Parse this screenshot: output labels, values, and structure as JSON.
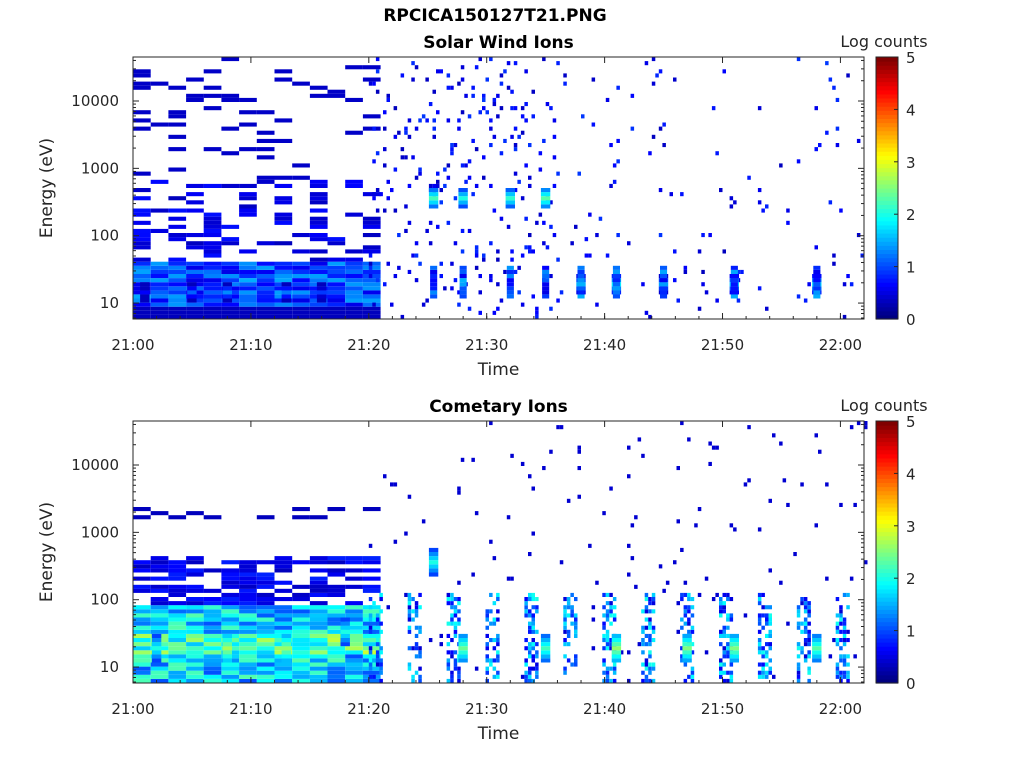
{
  "figure_title": "RPCICA150127T21.PNG",
  "chart_data": [
    {
      "type": "heatmap",
      "title": "Solar Wind Ions",
      "xlabel": "Time",
      "ylabel": "Energy (eV)",
      "x_ticks": [
        "21:00",
        "21:10",
        "21:20",
        "21:30",
        "21:40",
        "21:50",
        "22:00"
      ],
      "y_ticks": [
        "10",
        "100",
        "1000",
        "10000"
      ],
      "y_scale": "log",
      "xlim_minutes": [
        0,
        62
      ],
      "ylim_eV": [
        5.8,
        45000
      ],
      "colorbar": {
        "label": "Log counts",
        "ticks": [
          "0",
          "1",
          "2",
          "3",
          "4",
          "5"
        ],
        "range": [
          0,
          5
        ],
        "colormap": "jet"
      },
      "description_points": [
        {
          "t_min": 1,
          "e_eV": 15,
          "log_counts": 0.6
        },
        {
          "t_min": 5,
          "e_eV": 15,
          "log_counts": 1.1
        },
        {
          "t_min": 8,
          "e_eV": 15,
          "log_counts": 1.3
        },
        {
          "t_min": 13,
          "e_eV": 15,
          "log_counts": 1.2
        },
        {
          "t_min": 16,
          "e_eV": 15,
          "log_counts": 0.9
        },
        {
          "t_min": 25.5,
          "e_eV": 380,
          "log_counts": 2.2
        },
        {
          "t_min": 28,
          "e_eV": 380,
          "log_counts": 2.0
        },
        {
          "t_min": 32,
          "e_eV": 380,
          "log_counts": 2.1
        },
        {
          "t_min": 35,
          "e_eV": 380,
          "log_counts": 2.3
        },
        {
          "t_min": 38,
          "e_eV": 20,
          "log_counts": 1.5
        },
        {
          "t_min": 41,
          "e_eV": 20,
          "log_counts": 1.8
        },
        {
          "t_min": 45,
          "e_eV": 20,
          "log_counts": 1.4
        },
        {
          "t_min": 51,
          "e_eV": 20,
          "log_counts": 1.6
        },
        {
          "t_min": 58,
          "e_eV": 20,
          "log_counts": 1.7
        }
      ]
    },
    {
      "type": "heatmap",
      "title": "Cometary Ions",
      "xlabel": "Time",
      "ylabel": "Energy (eV)",
      "x_ticks": [
        "21:00",
        "21:10",
        "21:20",
        "21:30",
        "21:40",
        "21:50",
        "22:00"
      ],
      "y_ticks": [
        "10",
        "100",
        "1000",
        "10000"
      ],
      "y_scale": "log",
      "xlim_minutes": [
        0,
        62
      ],
      "ylim_eV": [
        5.8,
        45000
      ],
      "colorbar": {
        "label": "Log counts",
        "ticks": [
          "0",
          "1",
          "2",
          "3",
          "4",
          "5"
        ],
        "range": [
          0,
          5
        ],
        "colormap": "jet"
      },
      "description_points": [
        {
          "t_min": 2,
          "e_eV": 20,
          "log_counts": 2.0
        },
        {
          "t_min": 8,
          "e_eV": 20,
          "log_counts": 2.7
        },
        {
          "t_min": 13,
          "e_eV": 20,
          "log_counts": 2.6
        },
        {
          "t_min": 18,
          "e_eV": 35,
          "log_counts": 2.0
        },
        {
          "t_min": 25.5,
          "e_eV": 380,
          "log_counts": 2.0
        },
        {
          "t_min": 28,
          "e_eV": 20,
          "log_counts": 2.4
        },
        {
          "t_min": 35,
          "e_eV": 20,
          "log_counts": 2.2
        },
        {
          "t_min": 41,
          "e_eV": 20,
          "log_counts": 2.6
        },
        {
          "t_min": 47,
          "e_eV": 20,
          "log_counts": 2.5
        },
        {
          "t_min": 51,
          "e_eV": 20,
          "log_counts": 2.5
        },
        {
          "t_min": 58,
          "e_eV": 20,
          "log_counts": 2.3
        }
      ]
    }
  ]
}
